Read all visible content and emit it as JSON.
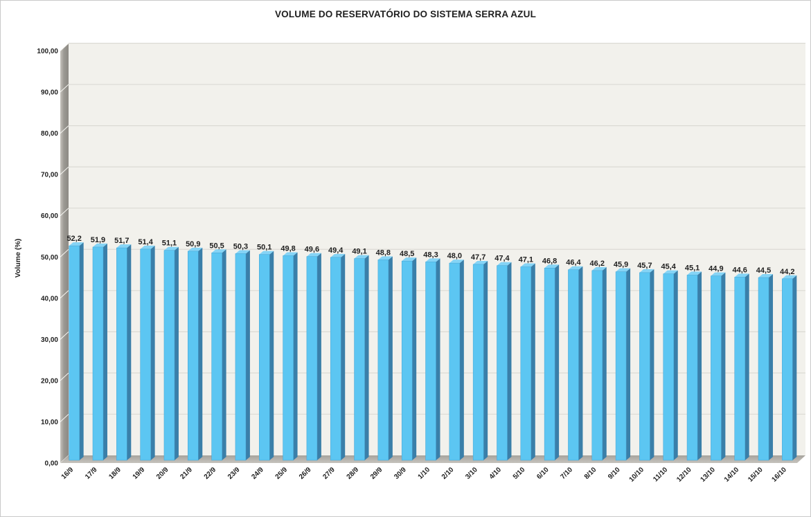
{
  "window": {
    "background": "#ffffff",
    "border_color": "#c9c9c9"
  },
  "chart_data": {
    "type": "bar",
    "style": "3d-column",
    "title": "VOLUME DO RESERVATÓRIO DO SISTEMA SERRA AZUL",
    "xlabel": "",
    "ylabel": "Volume (%)",
    "ylim": [
      0,
      100
    ],
    "ytick_step": 10,
    "ytick_labels": [
      "0,00",
      "10,00",
      "20,00",
      "30,00",
      "40,00",
      "50,00",
      "60,00",
      "70,00",
      "80,00",
      "90,00",
      "100,00"
    ],
    "grid": true,
    "legend_position": "none",
    "categories": [
      "16/9",
      "17/9",
      "18/9",
      "19/9",
      "20/9",
      "21/9",
      "22/9",
      "23/9",
      "24/9",
      "25/9",
      "26/9",
      "27/9",
      "28/9",
      "29/9",
      "30/9",
      "1/10",
      "2/10",
      "3/10",
      "4/10",
      "5/10",
      "6/10",
      "7/10",
      "8/10",
      "9/10",
      "10/10",
      "11/10",
      "12/10",
      "13/10",
      "14/10",
      "15/10",
      "16/10"
    ],
    "values": [
      52.2,
      51.9,
      51.7,
      51.4,
      51.1,
      50.9,
      50.5,
      50.3,
      50.1,
      49.8,
      49.6,
      49.4,
      49.1,
      48.8,
      48.5,
      48.3,
      48.0,
      47.7,
      47.4,
      47.1,
      46.8,
      46.4,
      46.2,
      45.9,
      45.7,
      45.4,
      45.1,
      44.9,
      44.6,
      44.5,
      44.2
    ],
    "value_labels": [
      "52,2",
      "51,9",
      "51,7",
      "51,4",
      "51,1",
      "50,9",
      "50,5",
      "50,3",
      "50,1",
      "49,8",
      "49,6",
      "49,4",
      "49,1",
      "48,8",
      "48,5",
      "48,3",
      "48,0",
      "47,7",
      "47,4",
      "47,1",
      "46,8",
      "46,4",
      "46,2",
      "45,9",
      "45,7",
      "45,4",
      "45,1",
      "44,9",
      "44,6",
      "44,5",
      "44,2"
    ]
  },
  "colors": {
    "bar_front": "#5cc6f2",
    "bar_top": "#85d4f6",
    "bar_side": "#3a7fa9",
    "bar_edge": "#45a3d2",
    "wall_light": "#c6c3bd",
    "wall_dark": "#8d8a84",
    "floor_back": "#a6a39d",
    "floor_front": "#c6c3bd",
    "plot_bg": "#f2f1ec",
    "gridline": "#dbdad4",
    "wall_gridline": "#f7f6f2",
    "text": "#1f1f1f"
  }
}
